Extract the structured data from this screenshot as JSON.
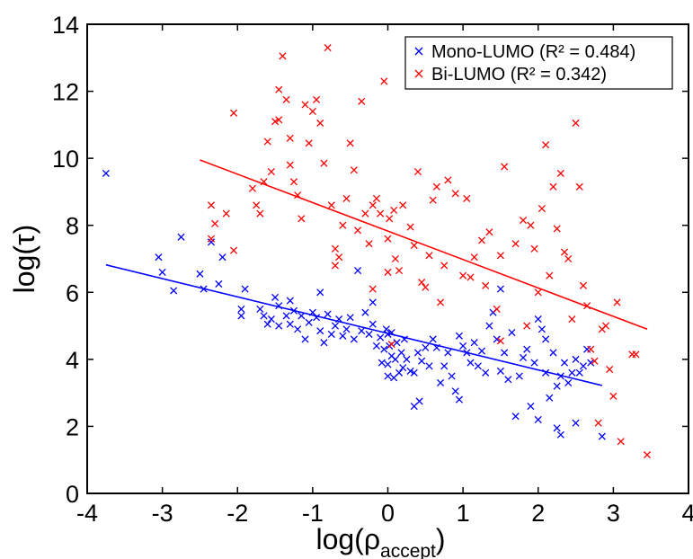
{
  "chart_data": {
    "type": "scatter",
    "title": "",
    "xlabel": {
      "base": "log(ρ",
      "sub": "accept",
      "close": ")"
    },
    "ylabel": "log(τ)",
    "xlim": [
      -4,
      4
    ],
    "ylim": [
      0,
      14
    ],
    "xticks": [
      -4,
      -3,
      -2,
      -1,
      0,
      1,
      2,
      3,
      4
    ],
    "yticks": [
      0,
      2,
      4,
      6,
      8,
      10,
      12,
      14
    ],
    "xtick_labels": [
      "-4",
      "-3",
      "-2",
      "-1",
      "0",
      "1",
      "2",
      "3",
      "4"
    ],
    "ytick_labels": [
      "0",
      "2",
      "4",
      "6",
      "8",
      "10",
      "12",
      "14"
    ],
    "grid": false,
    "legend_position": "top-right",
    "series": [
      {
        "name": "Mono-LUMO",
        "legend_label": "Mono-LUMO (R² = 0.484)",
        "color": "#0000ff",
        "marker": "x",
        "fit_line": {
          "x": [
            -3.75,
            2.85
          ],
          "y": [
            6.82,
            3.22
          ]
        },
        "points": [
          [
            -3.75,
            9.55
          ],
          [
            -3.05,
            7.05
          ],
          [
            -2.75,
            7.65
          ],
          [
            -3.0,
            6.6
          ],
          [
            -2.5,
            6.55
          ],
          [
            -2.35,
            7.5
          ],
          [
            -2.2,
            7.05
          ],
          [
            -2.85,
            6.05
          ],
          [
            -2.45,
            6.1
          ],
          [
            -2.25,
            6.25
          ],
          [
            -1.9,
            6.1
          ],
          [
            -1.95,
            5.5
          ],
          [
            -1.95,
            5.3
          ],
          [
            -1.7,
            5.5
          ],
          [
            -1.65,
            5.3
          ],
          [
            -1.6,
            5.05
          ],
          [
            -1.55,
            5.2
          ],
          [
            -1.5,
            5.85
          ],
          [
            -1.45,
            5.6
          ],
          [
            -1.45,
            5.0
          ],
          [
            -1.35,
            5.3
          ],
          [
            -1.3,
            5.75
          ],
          [
            -1.3,
            5.05
          ],
          [
            -1.25,
            5.45
          ],
          [
            -1.2,
            4.9
          ],
          [
            -1.15,
            5.3
          ],
          [
            -1.1,
            4.6
          ],
          [
            -1.05,
            5.1
          ],
          [
            -1.0,
            5.4
          ],
          [
            -0.95,
            5.25
          ],
          [
            -0.9,
            4.85
          ],
          [
            -0.9,
            6.0
          ],
          [
            -0.85,
            4.5
          ],
          [
            -0.8,
            5.35
          ],
          [
            -0.75,
            4.75
          ],
          [
            -0.7,
            5.0
          ],
          [
            -0.65,
            5.2
          ],
          [
            -0.6,
            4.7
          ],
          [
            -0.55,
            4.9
          ],
          [
            -0.5,
            5.25
          ],
          [
            -0.45,
            4.6
          ],
          [
            -0.4,
            6.65
          ],
          [
            -0.35,
            4.85
          ],
          [
            -0.3,
            5.4
          ],
          [
            -0.25,
            4.75
          ],
          [
            -0.2,
            5.05
          ],
          [
            -0.2,
            5.7
          ],
          [
            -0.15,
            4.4
          ],
          [
            -0.1,
            4.65
          ],
          [
            -0.08,
            3.9
          ],
          [
            -0.05,
            4.3
          ],
          [
            -0.02,
            4.9
          ],
          [
            0.0,
            3.5
          ],
          [
            0.0,
            4.75
          ],
          [
            0.0,
            3.85
          ],
          [
            0.02,
            4.4
          ],
          [
            0.05,
            4.8
          ],
          [
            0.05,
            4.1
          ],
          [
            0.08,
            3.45
          ],
          [
            0.1,
            4.0
          ],
          [
            0.12,
            4.5
          ],
          [
            0.15,
            3.6
          ],
          [
            0.18,
            4.2
          ],
          [
            0.2,
            3.75
          ],
          [
            0.22,
            4.6
          ],
          [
            0.25,
            4.0
          ],
          [
            0.3,
            3.65
          ],
          [
            0.35,
            3.6
          ],
          [
            0.35,
            2.6
          ],
          [
            0.4,
            4.2
          ],
          [
            0.42,
            2.75
          ],
          [
            0.45,
            3.95
          ],
          [
            0.5,
            4.35
          ],
          [
            0.55,
            3.8
          ],
          [
            0.6,
            4.6
          ],
          [
            0.65,
            4.35
          ],
          [
            0.7,
            3.3
          ],
          [
            0.75,
            3.8
          ],
          [
            0.8,
            4.2
          ],
          [
            0.85,
            3.5
          ],
          [
            0.9,
            3.05
          ],
          [
            0.95,
            4.7
          ],
          [
            0.95,
            2.8
          ],
          [
            1.0,
            4.4
          ],
          [
            1.05,
            4.2
          ],
          [
            1.1,
            3.9
          ],
          [
            1.15,
            4.5
          ],
          [
            1.2,
            3.8
          ],
          [
            1.25,
            4.25
          ],
          [
            1.3,
            3.6
          ],
          [
            1.35,
            5.0
          ],
          [
            1.4,
            5.4
          ],
          [
            1.45,
            4.6
          ],
          [
            1.5,
            6.1
          ],
          [
            1.5,
            3.65
          ],
          [
            1.55,
            4.2
          ],
          [
            1.6,
            3.4
          ],
          [
            1.65,
            4.8
          ],
          [
            1.7,
            2.3
          ],
          [
            1.75,
            3.5
          ],
          [
            1.8,
            4.05
          ],
          [
            1.85,
            4.3
          ],
          [
            1.9,
            2.6
          ],
          [
            1.95,
            3.9
          ],
          [
            2.0,
            2.2
          ],
          [
            2.0,
            5.2
          ],
          [
            2.05,
            4.9
          ],
          [
            2.1,
            4.6
          ],
          [
            2.1,
            3.6
          ],
          [
            2.15,
            2.85
          ],
          [
            2.2,
            4.2
          ],
          [
            2.25,
            3.2
          ],
          [
            2.25,
            1.95
          ],
          [
            2.3,
            3.5
          ],
          [
            2.3,
            1.75
          ],
          [
            2.35,
            3.9
          ],
          [
            2.4,
            3.3
          ],
          [
            2.45,
            3.6
          ],
          [
            2.5,
            4.0
          ],
          [
            2.5,
            2.1
          ],
          [
            2.55,
            3.6
          ],
          [
            2.6,
            3.8
          ],
          [
            2.65,
            4.3
          ],
          [
            2.7,
            3.9
          ],
          [
            2.85,
            1.7
          ]
        ]
      },
      {
        "name": "Bi-LUMO",
        "legend_label": "Bi-LUMO (R² = 0.342)",
        "color": "#ff0000",
        "marker": "x",
        "fit_line": {
          "x": [
            -2.5,
            3.45
          ],
          "y": [
            9.95,
            4.9
          ]
        },
        "points": [
          [
            -2.35,
            8.6
          ],
          [
            -2.3,
            8.05
          ],
          [
            -2.35,
            7.6
          ],
          [
            -2.15,
            8.35
          ],
          [
            -2.05,
            7.25
          ],
          [
            -2.05,
            11.35
          ],
          [
            -1.8,
            9.1
          ],
          [
            -1.75,
            8.6
          ],
          [
            -1.7,
            8.35
          ],
          [
            -1.65,
            9.3
          ],
          [
            -1.6,
            10.5
          ],
          [
            -1.55,
            9.6
          ],
          [
            -1.5,
            11.1
          ],
          [
            -1.45,
            11.15
          ],
          [
            -1.45,
            12.05
          ],
          [
            -1.4,
            13.05
          ],
          [
            -1.35,
            11.75
          ],
          [
            -1.3,
            10.6
          ],
          [
            -1.3,
            9.8
          ],
          [
            -1.25,
            9.3
          ],
          [
            -1.2,
            8.9
          ],
          [
            -1.15,
            8.2
          ],
          [
            -1.1,
            11.6
          ],
          [
            -1.05,
            10.45
          ],
          [
            -1.0,
            11.4
          ],
          [
            -0.95,
            11.75
          ],
          [
            -0.9,
            11.05
          ],
          [
            -0.85,
            9.85
          ],
          [
            -0.8,
            13.3
          ],
          [
            -0.75,
            8.6
          ],
          [
            -0.7,
            7.3
          ],
          [
            -0.7,
            6.8
          ],
          [
            -0.65,
            7.05
          ],
          [
            -0.6,
            8.0
          ],
          [
            -0.55,
            8.8
          ],
          [
            -0.5,
            10.45
          ],
          [
            -0.45,
            9.65
          ],
          [
            -0.4,
            7.85
          ],
          [
            -0.35,
            11.7
          ],
          [
            -0.3,
            8.35
          ],
          [
            -0.25,
            7.45
          ],
          [
            -0.2,
            8.6
          ],
          [
            -0.2,
            6.1
          ],
          [
            -0.15,
            8.8
          ],
          [
            -0.1,
            8.35
          ],
          [
            -0.05,
            12.3
          ],
          [
            0.0,
            7.6
          ],
          [
            0.0,
            6.6
          ],
          [
            0.02,
            8.2
          ],
          [
            0.05,
            4.45
          ],
          [
            0.08,
            8.45
          ],
          [
            0.1,
            7.0
          ],
          [
            0.15,
            6.65
          ],
          [
            0.2,
            8.6
          ],
          [
            0.3,
            7.95
          ],
          [
            0.35,
            7.4
          ],
          [
            0.4,
            9.6
          ],
          [
            0.45,
            6.3
          ],
          [
            0.5,
            6.15
          ],
          [
            0.55,
            7.1
          ],
          [
            0.6,
            8.75
          ],
          [
            0.65,
            9.15
          ],
          [
            0.7,
            5.7
          ],
          [
            0.75,
            6.8
          ],
          [
            0.8,
            9.35
          ],
          [
            0.9,
            8.95
          ],
          [
            1.0,
            6.5
          ],
          [
            1.05,
            8.8
          ],
          [
            1.1,
            6.45
          ],
          [
            1.15,
            7.05
          ],
          [
            1.25,
            7.55
          ],
          [
            1.3,
            6.2
          ],
          [
            1.35,
            7.8
          ],
          [
            1.45,
            5.5
          ],
          [
            1.5,
            4.55
          ],
          [
            1.5,
            7.1
          ],
          [
            1.55,
            9.75
          ],
          [
            1.7,
            7.45
          ],
          [
            1.8,
            8.15
          ],
          [
            1.85,
            5.0
          ],
          [
            1.9,
            8.0
          ],
          [
            1.95,
            7.3
          ],
          [
            2.0,
            6.0
          ],
          [
            2.05,
            8.5
          ],
          [
            2.1,
            10.4
          ],
          [
            2.15,
            6.5
          ],
          [
            2.2,
            9.15
          ],
          [
            2.25,
            7.9
          ],
          [
            2.3,
            9.55
          ],
          [
            2.35,
            7.2
          ],
          [
            2.4,
            7.0
          ],
          [
            2.45,
            5.2
          ],
          [
            2.5,
            11.05
          ],
          [
            2.55,
            9.15
          ],
          [
            2.6,
            6.2
          ],
          [
            2.65,
            5.6
          ],
          [
            2.7,
            4.3
          ],
          [
            2.75,
            3.95
          ],
          [
            2.8,
            2.1
          ],
          [
            2.85,
            4.9
          ],
          [
            2.9,
            5.0
          ],
          [
            2.95,
            3.7
          ],
          [
            3.0,
            2.9
          ],
          [
            3.05,
            5.7
          ],
          [
            3.1,
            1.55
          ],
          [
            3.25,
            4.15
          ],
          [
            3.3,
            4.15
          ],
          [
            3.45,
            1.15
          ]
        ]
      }
    ]
  }
}
